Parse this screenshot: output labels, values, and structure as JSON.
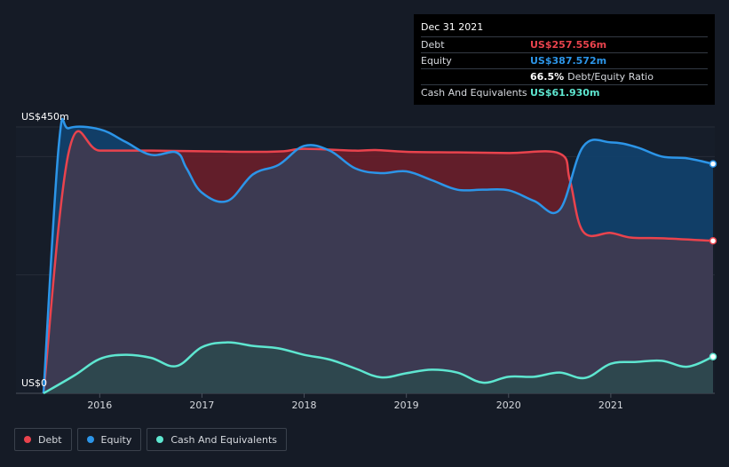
{
  "tooltip": {
    "date": "Dec 31 2021",
    "rows": [
      {
        "label": "Debt",
        "value": "US$257.556m",
        "color": "#e9434d"
      },
      {
        "label": "Equity",
        "value": "US$387.572m",
        "color": "#2c95e8"
      },
      {
        "label": "",
        "value": "66.5%",
        "extra": "Debt/Equity Ratio",
        "color": "#ffffff"
      },
      {
        "label": "Cash And Equivalents",
        "value": "US$61.930m",
        "color": "#5ee6d0"
      }
    ]
  },
  "legend": [
    {
      "label": "Debt",
      "color": "#e9434d"
    },
    {
      "label": "Equity",
      "color": "#2c95e8"
    },
    {
      "label": "Cash And Equivalents",
      "color": "#5ee6d0"
    }
  ],
  "chart_data": {
    "type": "area",
    "y_top_label": "US$450m",
    "y_bottom_label": "US$0",
    "ylim": [
      0,
      450
    ],
    "xlim": [
      2015.45,
      2022.0
    ],
    "x_ticks": [
      "2016",
      "2017",
      "2018",
      "2019",
      "2020",
      "2021"
    ],
    "x_tick_values": [
      2016,
      2017,
      2018,
      2019,
      2020,
      2021
    ],
    "grid": "horizontal",
    "legend_position": "bottom-left",
    "series": [
      {
        "name": "Debt",
        "color": "#e9434d",
        "points": [
          [
            2015.45,
            0
          ],
          [
            2015.7,
            410
          ],
          [
            2016.0,
            410
          ],
          [
            2016.5,
            410
          ],
          [
            2017.0,
            409
          ],
          [
            2017.5,
            408
          ],
          [
            2017.8,
            409
          ],
          [
            2018.0,
            413
          ],
          [
            2018.5,
            410
          ],
          [
            2018.7,
            411
          ],
          [
            2019.0,
            408
          ],
          [
            2019.5,
            407
          ],
          [
            2020.0,
            406
          ],
          [
            2020.5,
            405
          ],
          [
            2020.6,
            360
          ],
          [
            2020.73,
            273
          ],
          [
            2021.0,
            271
          ],
          [
            2021.2,
            263
          ],
          [
            2021.5,
            262
          ],
          [
            2022.0,
            257.556
          ]
        ]
      },
      {
        "name": "Equity",
        "color": "#2c95e8",
        "points": [
          [
            2015.45,
            0
          ],
          [
            2015.6,
            420
          ],
          [
            2015.7,
            448
          ],
          [
            2016.0,
            446
          ],
          [
            2016.25,
            425
          ],
          [
            2016.5,
            403
          ],
          [
            2016.75,
            407
          ],
          [
            2016.85,
            380
          ],
          [
            2017.0,
            339
          ],
          [
            2017.25,
            325
          ],
          [
            2017.5,
            370
          ],
          [
            2017.75,
            386
          ],
          [
            2018.0,
            418
          ],
          [
            2018.25,
            410
          ],
          [
            2018.5,
            380
          ],
          [
            2018.75,
            372
          ],
          [
            2019.0,
            375
          ],
          [
            2019.25,
            360
          ],
          [
            2019.5,
            344
          ],
          [
            2019.75,
            344
          ],
          [
            2020.0,
            343
          ],
          [
            2020.25,
            325
          ],
          [
            2020.5,
            310
          ],
          [
            2020.73,
            417
          ],
          [
            2021.0,
            424
          ],
          [
            2021.25,
            416
          ],
          [
            2021.5,
            400
          ],
          [
            2021.75,
            397
          ],
          [
            2022.0,
            387.572
          ]
        ]
      },
      {
        "name": "Cash And Equivalents",
        "color": "#5ee6d0",
        "points": [
          [
            2015.45,
            0
          ],
          [
            2015.75,
            30
          ],
          [
            2016.0,
            58
          ],
          [
            2016.25,
            65
          ],
          [
            2016.5,
            60
          ],
          [
            2016.75,
            46
          ],
          [
            2017.0,
            78
          ],
          [
            2017.25,
            86
          ],
          [
            2017.5,
            80
          ],
          [
            2017.75,
            76
          ],
          [
            2018.0,
            65
          ],
          [
            2018.25,
            57
          ],
          [
            2018.5,
            42
          ],
          [
            2018.75,
            27
          ],
          [
            2019.0,
            34
          ],
          [
            2019.25,
            40
          ],
          [
            2019.5,
            35
          ],
          [
            2019.75,
            18
          ],
          [
            2020.0,
            28
          ],
          [
            2020.25,
            28
          ],
          [
            2020.5,
            35
          ],
          [
            2020.75,
            26
          ],
          [
            2021.0,
            50
          ],
          [
            2021.25,
            53
          ],
          [
            2021.5,
            55
          ],
          [
            2021.75,
            45
          ],
          [
            2022.0,
            61.93
          ]
        ]
      }
    ]
  }
}
